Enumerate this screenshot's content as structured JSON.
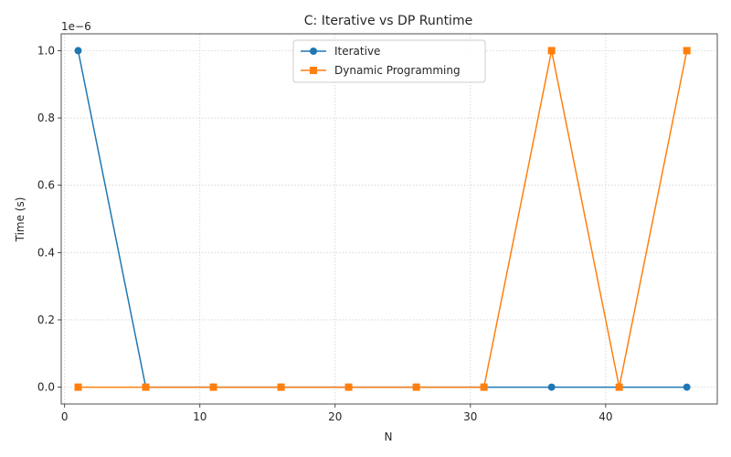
{
  "chart_data": {
    "type": "line",
    "title": "C: Iterative vs DP Runtime",
    "xlabel": "N",
    "ylabel": "Time (s)",
    "y_offset_text": "1e−6",
    "y_multiplier": 1e-06,
    "xlim": [
      -0.25,
      48.25
    ],
    "ylim": [
      -0.05,
      1.05
    ],
    "xticks": [
      0,
      10,
      20,
      30,
      40
    ],
    "yticks": [
      0.0,
      0.2,
      0.4,
      0.6,
      0.8,
      1.0
    ],
    "ytick_labels": [
      "0.0",
      "0.2",
      "0.4",
      "0.6",
      "0.8",
      "1.0"
    ],
    "grid": true,
    "legend_position": "top-center",
    "x": [
      1,
      6,
      11,
      16,
      21,
      26,
      31,
      36,
      41,
      46
    ],
    "series": [
      {
        "name": "Iterative",
        "color": "#1f77b4",
        "marker": "circle",
        "values": [
          1.0,
          0,
          0,
          0,
          0,
          0,
          0,
          0,
          0,
          0
        ]
      },
      {
        "name": "Dynamic Programming",
        "color": "#ff7f0e",
        "marker": "square",
        "values": [
          0,
          0,
          0,
          0,
          0,
          0,
          0,
          1.0,
          0,
          1.0
        ]
      }
    ]
  }
}
